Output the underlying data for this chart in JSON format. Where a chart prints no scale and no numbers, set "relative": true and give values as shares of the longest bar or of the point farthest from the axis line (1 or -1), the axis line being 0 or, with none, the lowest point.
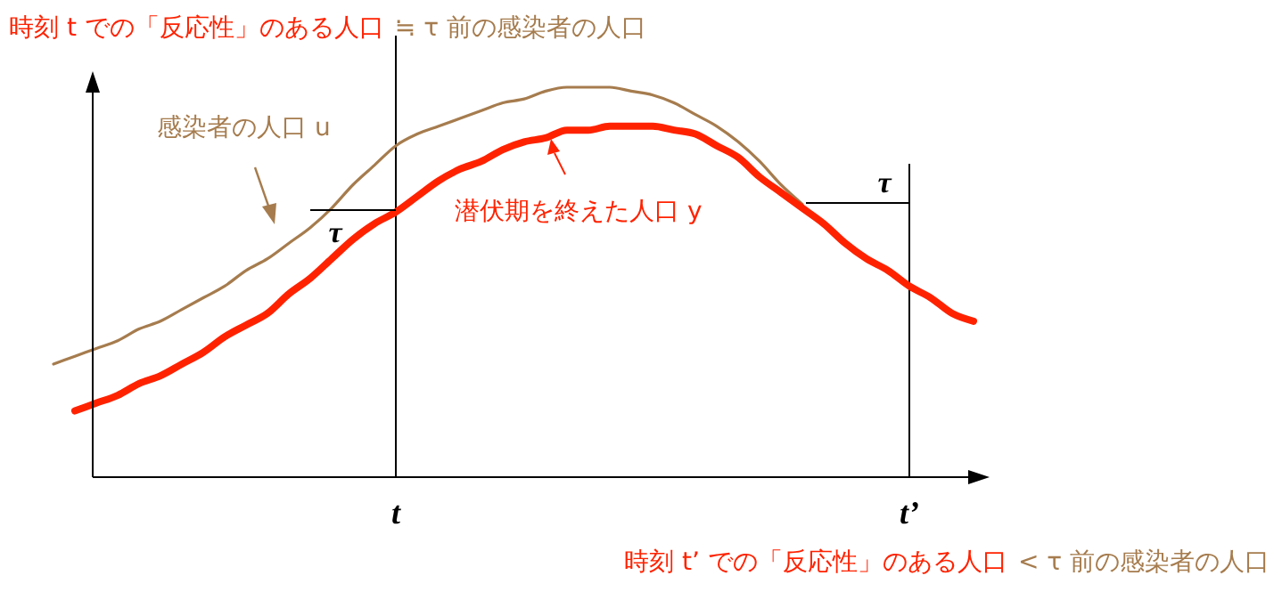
{
  "chart_data": {
    "type": "line",
    "relative": true,
    "title": "時刻 t での「反応性」のある人口",
    "subtitle": "≒ τ 前の感染者の人口",
    "categories": [
      null,
      null,
      null,
      null,
      null,
      null,
      null,
      null,
      null,
      null,
      null,
      null,
      null,
      null,
      null,
      null,
      "t",
      null,
      null,
      null,
      null,
      null,
      null,
      null,
      null,
      null,
      null,
      null,
      null,
      null,
      null,
      null,
      null,
      null,
      null,
      null,
      null,
      null,
      null,
      null,
      "t’",
      null,
      null,
      null
    ],
    "series": [
      {
        "name": "感染者の人口 u",
        "color": "#a67c4e",
        "values": [
          0.29,
          0.31,
          0.33,
          0.35,
          0.38,
          0.4,
          0.43,
          0.46,
          0.49,
          0.53,
          0.56,
          0.6,
          0.64,
          0.69,
          0.75,
          0.8,
          0.85,
          0.88,
          0.9,
          0.92,
          0.94,
          0.96,
          0.97,
          0.99,
          1.0,
          1.0,
          1.0,
          0.99,
          0.98,
          0.96,
          0.93,
          0.9,
          0.86,
          0.81,
          0.75,
          0.7,
          null,
          null,
          null,
          null,
          null,
          null,
          null,
          null
        ]
      },
      {
        "name": "潜伏期を終えた人口 y",
        "color": "#ff2200",
        "values": [
          null,
          0.17,
          0.19,
          0.21,
          0.24,
          0.26,
          0.29,
          0.32,
          0.36,
          0.39,
          0.42,
          0.47,
          0.51,
          0.56,
          0.61,
          0.65,
          0.68,
          0.72,
          0.76,
          0.79,
          0.81,
          0.84,
          0.86,
          0.87,
          0.89,
          0.89,
          0.9,
          0.9,
          0.9,
          0.89,
          0.88,
          0.85,
          0.82,
          0.77,
          0.73,
          0.69,
          0.65,
          0.6,
          0.56,
          0.53,
          0.49,
          0.46,
          0.42,
          0.4
        ]
      }
    ],
    "annotations": [
      "τ",
      "τ",
      "時刻 t’ での「反応性」のある人口",
      "< τ 前の感染者の人口"
    ],
    "legend": false,
    "grid": "x",
    "marker": "none",
    "line_style": "solid"
  }
}
